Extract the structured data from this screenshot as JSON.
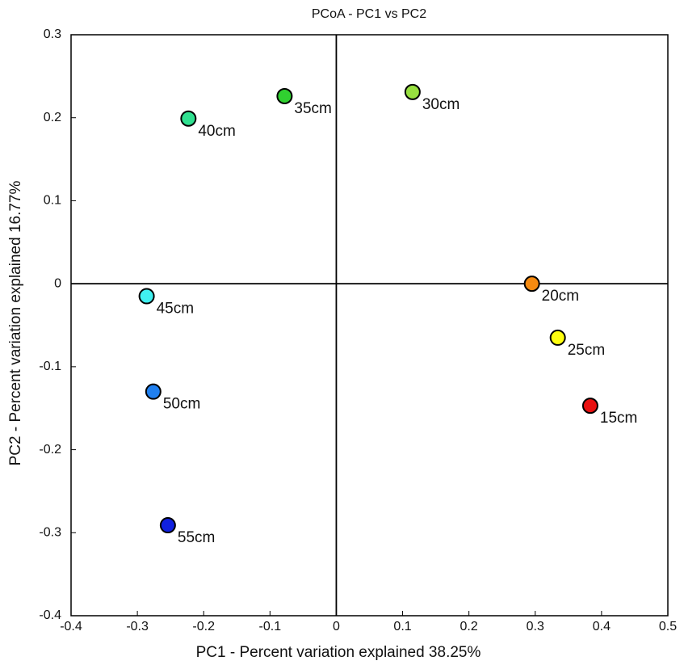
{
  "chart_data": {
    "type": "scatter",
    "title": "PCoA - PC1 vs PC2",
    "x_label": "PC1 - Percent variation explained 38.25%",
    "y_label": "PC2 - Percent variation explained 16.77%",
    "xlim": [
      -0.4,
      0.5
    ],
    "ylim": [
      -0.4,
      0.3
    ],
    "xticks": [
      -0.4,
      -0.3,
      -0.2,
      -0.1,
      0,
      0.1,
      0.2,
      0.3,
      0.4,
      0.5
    ],
    "yticks": [
      -0.4,
      -0.3,
      -0.2,
      -0.1,
      0,
      0.1,
      0.2,
      0.3
    ],
    "zero_lines": true,
    "series": [
      {
        "name": "15cm",
        "color": "#e81010",
        "x": [
          0.383
        ],
        "values": [
          -0.147
        ]
      },
      {
        "name": "20cm",
        "color": "#f58a10",
        "x": [
          0.295
        ],
        "values": [
          0
        ]
      },
      {
        "name": "25cm",
        "color": "#ffff10",
        "x": [
          0.334
        ],
        "values": [
          -0.065
        ]
      },
      {
        "name": "30cm",
        "color": "#98e040",
        "x": [
          0.115
        ],
        "values": [
          0.231
        ]
      },
      {
        "name": "35cm",
        "color": "#30d030",
        "x": [
          -0.078
        ],
        "values": [
          0.226
        ]
      },
      {
        "name": "40cm",
        "color": "#30e090",
        "x": [
          -0.223
        ],
        "values": [
          0.199
        ]
      },
      {
        "name": "45cm",
        "color": "#40f0f0",
        "x": [
          -0.286
        ],
        "values": [
          -0.015
        ]
      },
      {
        "name": "50cm",
        "color": "#2080f0",
        "x": [
          -0.276
        ],
        "values": [
          -0.13
        ]
      },
      {
        "name": "55cm",
        "color": "#1020e0",
        "x": [
          -0.254
        ],
        "values": [
          -0.291
        ]
      }
    ]
  }
}
